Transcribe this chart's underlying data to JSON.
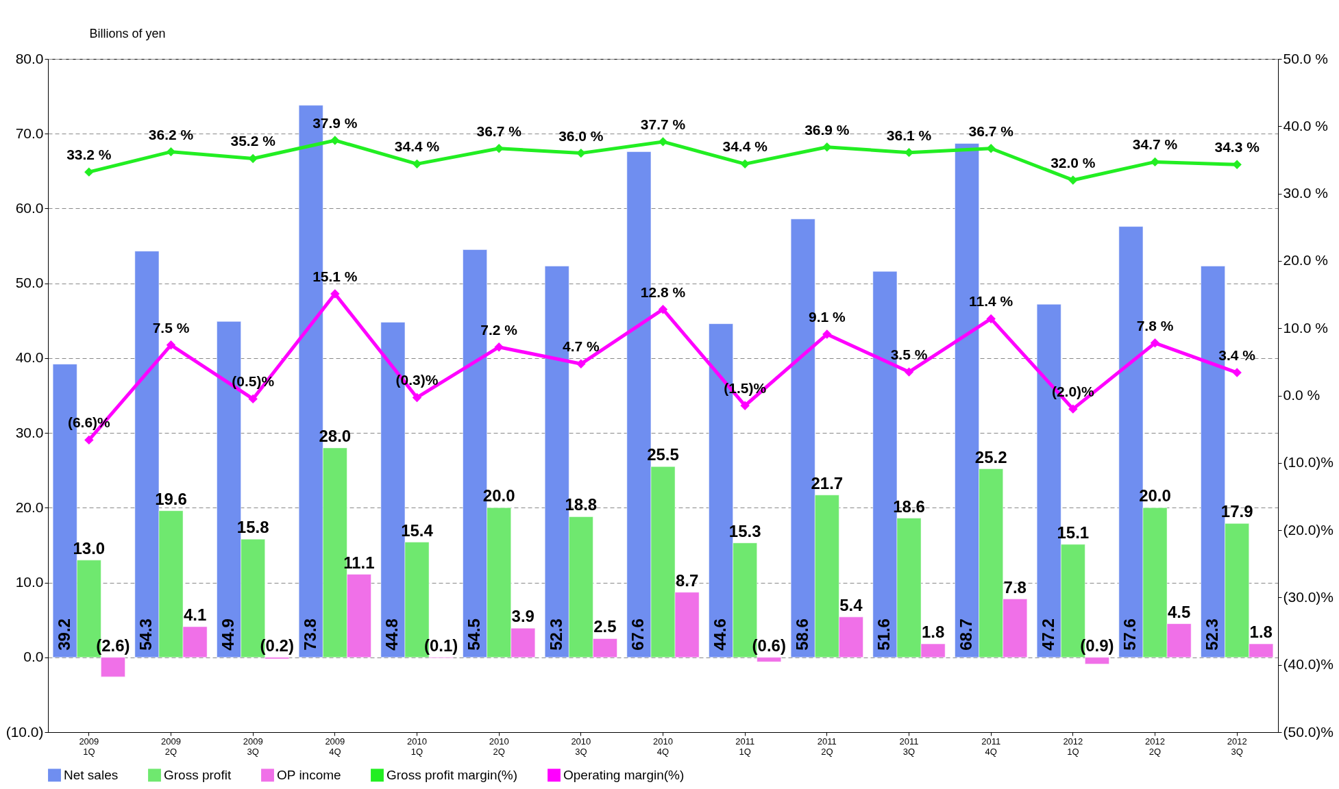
{
  "chart_data": {
    "type": "bar",
    "ylabel": "Billions of yen",
    "categories": [
      "2009\n1Q",
      "2009\n2Q",
      "2009\n3Q",
      "2009\n4Q",
      "2010\n1Q",
      "2010\n2Q",
      "2010\n3Q",
      "2010\n4Q",
      "2011\n1Q",
      "2011\n2Q",
      "2011\n3Q",
      "2011\n4Q",
      "2012\n1Q",
      "2012\n2Q",
      "2012\n3Q"
    ],
    "ylim": [
      -10,
      80
    ],
    "yticks": [
      {
        "value": -10,
        "label": "(10.0)"
      },
      {
        "value": 0,
        "label": "0.0"
      },
      {
        "value": 10,
        "label": "10.0"
      },
      {
        "value": 20,
        "label": "20.0"
      },
      {
        "value": 30,
        "label": "30.0"
      },
      {
        "value": 40,
        "label": "40.0"
      },
      {
        "value": 50,
        "label": "50.0"
      },
      {
        "value": 60,
        "label": "60.0"
      },
      {
        "value": 70,
        "label": "70.0"
      },
      {
        "value": 80,
        "label": "80.0"
      }
    ],
    "y2lim": [
      -50,
      50
    ],
    "y2ticks": [
      {
        "value": -50,
        "label": "(50.0)%"
      },
      {
        "value": -40,
        "label": "(40.0)%"
      },
      {
        "value": -30,
        "label": "(30.0)%"
      },
      {
        "value": -20,
        "label": "(20.0)%"
      },
      {
        "value": -10,
        "label": "(10.0)%"
      },
      {
        "value": 0,
        "label": "0.0 %"
      },
      {
        "value": 10,
        "label": "10.0 %"
      },
      {
        "value": 20,
        "label": "20.0 %"
      },
      {
        "value": 30,
        "label": "30.0 %"
      },
      {
        "value": 40,
        "label": "40.0 %"
      },
      {
        "value": 50,
        "label": "50.0 %"
      }
    ],
    "grid": "y",
    "legend": "bottom",
    "marker": "diamond",
    "line_style": "solid",
    "series": [
      {
        "name": "Net sales",
        "color": "#6f8ef0",
        "values": [
          39.2,
          54.3,
          44.9,
          73.8,
          44.8,
          54.5,
          52.3,
          67.6,
          44.6,
          58.6,
          51.6,
          68.7,
          47.2,
          57.6,
          52.3
        ],
        "value_labels": [
          "39.2",
          "54.3",
          "44.9",
          "73.8",
          "44.8",
          "54.5",
          "52.3",
          "67.6",
          "44.6",
          "58.6",
          "51.6",
          "68.7",
          "47.2",
          "57.6",
          "52.3"
        ]
      },
      {
        "name": "Gross profit",
        "color": "#6fe86f",
        "values": [
          13.0,
          19.6,
          15.8,
          28.0,
          15.4,
          20.0,
          18.8,
          25.5,
          15.3,
          21.7,
          18.6,
          25.2,
          15.1,
          20.0,
          17.9
        ],
        "value_labels": [
          "13.0",
          "19.6",
          "15.8",
          "28.0",
          "15.4",
          "20.0",
          "18.8",
          "25.5",
          "15.3",
          "21.7",
          "18.6",
          "25.2",
          "15.1",
          "20.0",
          "17.9"
        ]
      },
      {
        "name": "OP income",
        "color": "#f070e8",
        "values": [
          -2.6,
          4.1,
          -0.2,
          11.1,
          -0.1,
          3.9,
          2.5,
          8.7,
          -0.6,
          5.4,
          1.8,
          7.8,
          -0.9,
          4.5,
          1.8
        ],
        "value_labels": [
          "(2.6)",
          "4.1",
          "(0.2)",
          "11.1",
          "(0.1)",
          "3.9",
          "2.5",
          "8.7",
          "(0.6)",
          "5.4",
          "1.8",
          "7.8",
          "(0.9)",
          "4.5",
          "1.8"
        ]
      },
      {
        "name": "Gross profit margin(%)",
        "type": "line",
        "axis": "y2",
        "color": "#22ee22",
        "values": [
          33.2,
          36.2,
          35.2,
          37.9,
          34.4,
          36.7,
          36.0,
          37.7,
          34.4,
          36.9,
          36.1,
          36.7,
          32.0,
          34.7,
          34.3
        ],
        "value_labels": [
          "33.2 %",
          "36.2 %",
          "35.2 %",
          "37.9 %",
          "34.4 %",
          "36.7 %",
          "36.0 %",
          "37.7 %",
          "34.4 %",
          "36.9 %",
          "36.1 %",
          "36.7 %",
          "32.0 %",
          "34.7 %",
          "34.3 %"
        ]
      },
      {
        "name": "Operating margin(%)",
        "type": "line",
        "axis": "y2",
        "color": "#ff00ff",
        "values": [
          -6.6,
          7.5,
          -0.5,
          15.1,
          -0.3,
          7.2,
          4.7,
          12.8,
          -1.5,
          9.1,
          3.5,
          11.4,
          -2.0,
          7.8,
          3.4
        ],
        "value_labels": [
          "(6.6)%",
          "7.5 %",
          "(0.5)%",
          "15.1 %",
          "(0.3)%",
          "7.2 %",
          "4.7 %",
          "12.8 %",
          "(1.5)%",
          "9.1 %",
          "3.5 %",
          "11.4 %",
          "(2.0)%",
          "7.8 %",
          "3.4 %"
        ]
      }
    ]
  }
}
